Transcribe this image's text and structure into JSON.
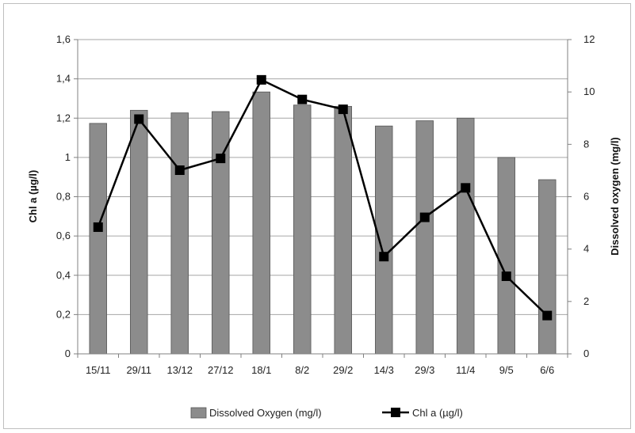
{
  "chart_data": {
    "type": "bar",
    "categories": [
      "15/11",
      "29/11",
      "13/12",
      "27/12",
      "18/1",
      "8/2",
      "29/2",
      "14/3",
      "29/3",
      "11/4",
      "9/5",
      "6/6"
    ],
    "series": [
      {
        "name": "Dissolved Oxygen (mg/l)",
        "type": "bar",
        "axis": "right",
        "values": [
          8.8,
          9.3,
          9.2,
          9.25,
          10.0,
          9.5,
          9.45,
          8.7,
          8.9,
          9.0,
          7.5,
          6.65
        ]
      },
      {
        "name": "Chl a (µg/l)",
        "type": "line",
        "axis": "left",
        "values": [
          0.645,
          1.195,
          0.935,
          0.995,
          1.395,
          1.295,
          1.245,
          0.495,
          0.695,
          0.845,
          0.395,
          0.195
        ]
      }
    ],
    "ylabel": "Chl a (µg/l)",
    "y2label": "Dissolved oxygen (mg/l)",
    "ylim": [
      0,
      1.6
    ],
    "y2lim": [
      0,
      12
    ],
    "yticks": [
      "0",
      "0,2",
      "0,4",
      "0,6",
      "0,8",
      "1",
      "1,2",
      "1,4",
      "1,6"
    ],
    "y2ticks": [
      "0",
      "2",
      "4",
      "6",
      "8",
      "10",
      "12"
    ],
    "grid": true,
    "legend_position": "bottom",
    "colors": {
      "bar_fill": "#8c8c8c",
      "bar_stroke": "#555555",
      "line": "#000000",
      "marker": "#000000",
      "grid": "#a6a6a6"
    }
  }
}
